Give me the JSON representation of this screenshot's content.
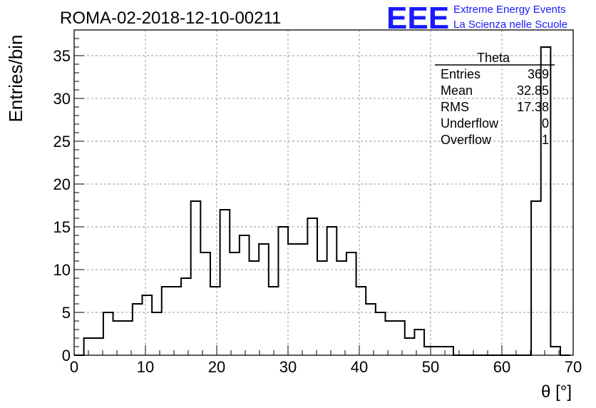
{
  "header": {
    "run_title": "ROMA-02-2018-12-10-00211",
    "logo_text": "EEE",
    "org_line1": "Extreme Energy Events",
    "org_line2": "La Scienza nelle Scuole",
    "logo_color": "#1a1aff"
  },
  "stats_box": {
    "title": "Theta",
    "rows": [
      {
        "label": "Entries",
        "value": "369"
      },
      {
        "label": "Mean",
        "value": "32.85"
      },
      {
        "label": "RMS",
        "value": "17.38"
      },
      {
        "label": "Underflow",
        "value": "0"
      },
      {
        "label": "Overflow",
        "value": "1"
      }
    ]
  },
  "chart_data": {
    "type": "bar",
    "histogram": true,
    "title": "ROMA-02-2018-12-10-00211",
    "xlabel": "θ [°]",
    "ylabel": "Entries/bin",
    "xlim": [
      0,
      70
    ],
    "ylim": [
      0,
      38
    ],
    "grid": true,
    "x_ticks": [
      0,
      10,
      20,
      30,
      40,
      50,
      60,
      70
    ],
    "y_ticks": [
      0,
      5,
      10,
      15,
      20,
      25,
      30,
      35
    ],
    "bin_start": 0,
    "bin_width": 1.364,
    "values": [
      0,
      2,
      2,
      5,
      4,
      4,
      6,
      7,
      5,
      8,
      8,
      9,
      18,
      12,
      8,
      17,
      12,
      14,
      11,
      13,
      8,
      15,
      13,
      13,
      16,
      11,
      15,
      11,
      12,
      8,
      6,
      5,
      4,
      4,
      2,
      3,
      1,
      1,
      1,
      0,
      0,
      0,
      0,
      0,
      0,
      0,
      0,
      18,
      36,
      1,
      0
    ]
  }
}
